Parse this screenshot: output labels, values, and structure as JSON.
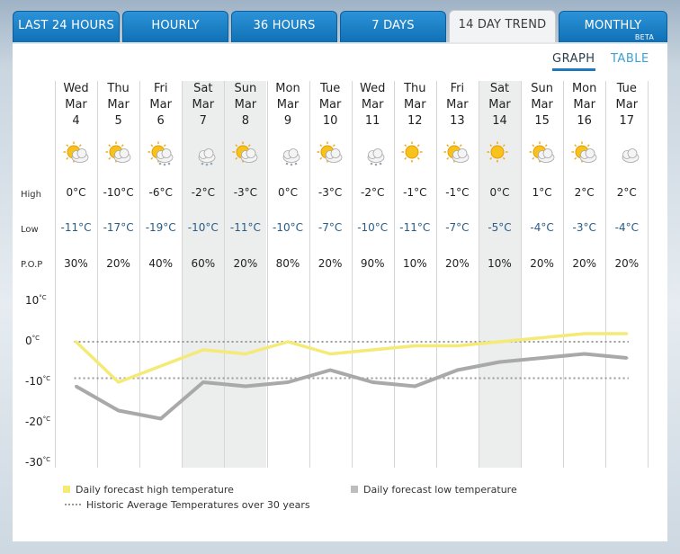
{
  "tabs": [
    {
      "label": "LAST 24 HOURS"
    },
    {
      "label": "HOURLY"
    },
    {
      "label": "36 HOURS"
    },
    {
      "label": "7 DAYS"
    },
    {
      "label": "14 DAY TREND"
    },
    {
      "label": "MONTHLY",
      "badge": "BETA"
    }
  ],
  "active_tab": "14 DAY TREND",
  "view_toggle": {
    "graph": "GRAPH",
    "table": "TABLE",
    "active": "GRAPH"
  },
  "row_labels": {
    "high": "High",
    "low": "Low",
    "pop": "P.O.P"
  },
  "days": [
    {
      "dow": "Wed",
      "month": "Mar",
      "date": "4",
      "icon": "sun-cloud-icon",
      "high": "0°C",
      "low": "-11°C",
      "pop": "30%",
      "weekend": false
    },
    {
      "dow": "Thu",
      "month": "Mar",
      "date": "5",
      "icon": "sun-cloud-icon",
      "high": "-10°C",
      "low": "-17°C",
      "pop": "20%",
      "weekend": false
    },
    {
      "dow": "Fri",
      "month": "Mar",
      "date": "6",
      "icon": "sun-cloud-snow-icon",
      "high": "-6°C",
      "low": "-19°C",
      "pop": "40%",
      "weekend": false
    },
    {
      "dow": "Sat",
      "month": "Mar",
      "date": "7",
      "icon": "cloud-snow-icon",
      "high": "-2°C",
      "low": "-10°C",
      "pop": "60%",
      "weekend": true
    },
    {
      "dow": "Sun",
      "month": "Mar",
      "date": "8",
      "icon": "sun-cloud-icon",
      "high": "-3°C",
      "low": "-11°C",
      "pop": "20%",
      "weekend": true
    },
    {
      "dow": "Mon",
      "month": "Mar",
      "date": "9",
      "icon": "cloud-snow-icon",
      "high": "0°C",
      "low": "-10°C",
      "pop": "80%",
      "weekend": false
    },
    {
      "dow": "Tue",
      "month": "Mar",
      "date": "10",
      "icon": "sun-cloud-icon",
      "high": "-3°C",
      "low": "-7°C",
      "pop": "20%",
      "weekend": false
    },
    {
      "dow": "Wed",
      "month": "Mar",
      "date": "11",
      "icon": "cloud-snow-icon",
      "high": "-2°C",
      "low": "-10°C",
      "pop": "90%",
      "weekend": false
    },
    {
      "dow": "Thu",
      "month": "Mar",
      "date": "12",
      "icon": "sun-icon",
      "high": "-1°C",
      "low": "-11°C",
      "pop": "10%",
      "weekend": false
    },
    {
      "dow": "Fri",
      "month": "Mar",
      "date": "13",
      "icon": "sun-cloud-icon",
      "high": "-1°C",
      "low": "-7°C",
      "pop": "20%",
      "weekend": false
    },
    {
      "dow": "Sat",
      "month": "Mar",
      "date": "14",
      "icon": "sun-icon",
      "high": "0°C",
      "low": "-5°C",
      "pop": "10%",
      "weekend": true
    },
    {
      "dow": "Sun",
      "month": "Mar",
      "date": "15",
      "icon": "sun-cloud-icon",
      "high": "1°C",
      "low": "-4°C",
      "pop": "20%",
      "weekend": false
    },
    {
      "dow": "Mon",
      "month": "Mar",
      "date": "16",
      "icon": "sun-cloud-icon",
      "high": "2°C",
      "low": "-3°C",
      "pop": "20%",
      "weekend": false
    },
    {
      "dow": "Tue",
      "month": "Mar",
      "date": "17",
      "icon": "cloud-icon",
      "high": "2°C",
      "low": "-4°C",
      "pop": "20%",
      "weekend": false
    }
  ],
  "colors": {
    "tab_blue": "#1a80c6",
    "high_line": "#f5ea76",
    "low_line": "#a9a9a9",
    "avg_line": "#999999",
    "low_text": "#2a5c86",
    "weekend_shade": "#eceded",
    "link_blue": "#3ea0d3"
  },
  "chart_data": {
    "type": "line",
    "x": [
      "Mar 4",
      "Mar 5",
      "Mar 6",
      "Mar 7",
      "Mar 8",
      "Mar 9",
      "Mar 10",
      "Mar 11",
      "Mar 12",
      "Mar 13",
      "Mar 14",
      "Mar 15",
      "Mar 16",
      "Mar 17"
    ],
    "series": [
      {
        "name": "Daily forecast high temperature",
        "values": [
          0,
          -10,
          -6,
          -2,
          -3,
          0,
          -3,
          -2,
          -1,
          -1,
          0,
          1,
          2,
          2
        ]
      },
      {
        "name": "Daily forecast low temperature",
        "values": [
          -11,
          -17,
          -19,
          -10,
          -11,
          -10,
          -7,
          -10,
          -11,
          -7,
          -5,
          -4,
          -3,
          -4
        ]
      }
    ],
    "reference_lines": [
      {
        "name": "Historic Average Temperatures over 30 years",
        "values": [
          0,
          -9
        ]
      }
    ],
    "yticks": [
      "10",
      "0",
      "-10",
      "-20",
      "-30"
    ],
    "ytick_unit": "°C",
    "ylim": [
      -30,
      10
    ],
    "grid": false,
    "legend_position": "bottom"
  },
  "legend": {
    "high": "Daily forecast high temperature",
    "low": "Daily forecast low temperature",
    "avg": "Historic Average Temperatures over 30 years"
  }
}
